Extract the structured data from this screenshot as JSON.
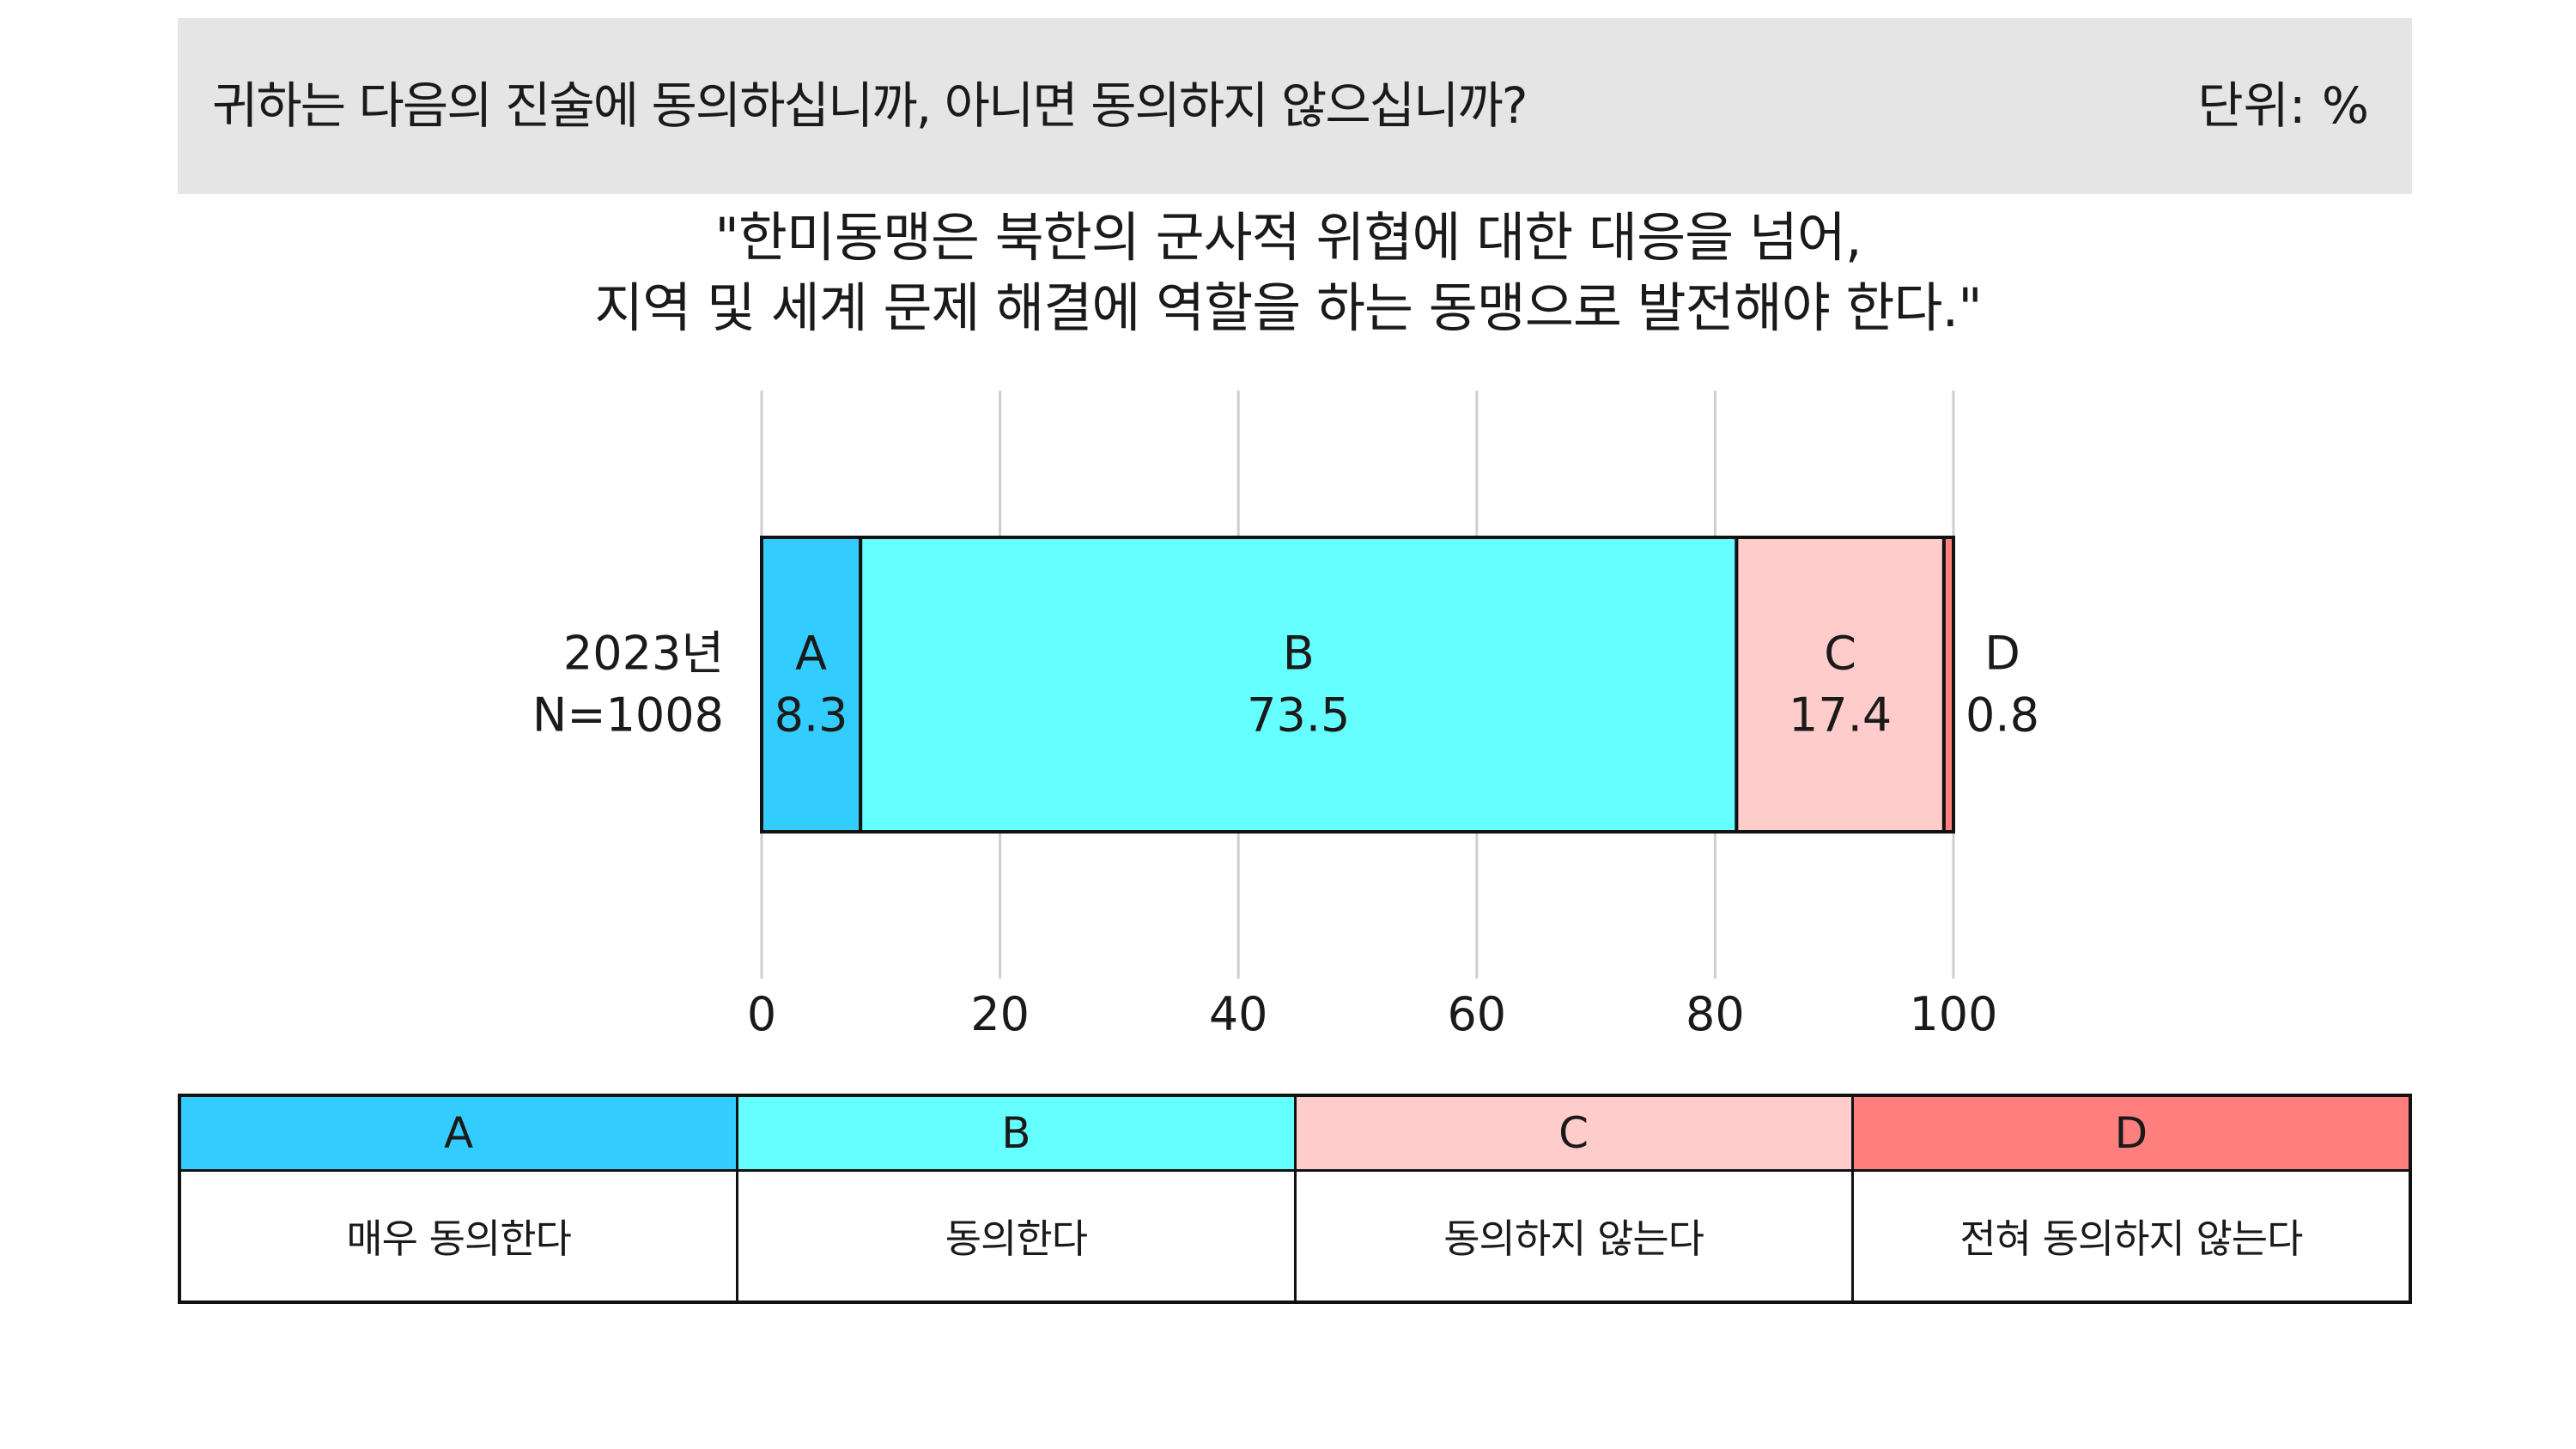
{
  "header": {
    "question": "귀하는 다음의 진술에 동의하십니까, 아니면 동의하지 않으십니까?",
    "unit": "단위: %"
  },
  "statement": {
    "line1": "\"한미동맹은 북한의 군사적 위협에 대한 대응을 넘어,",
    "line2": "지역 및 세계 문제 해결에 역할을 하는 동맹으로 발전해야 한다.\""
  },
  "chart_data": {
    "type": "bar",
    "orientation": "horizontal",
    "stacked": true,
    "categories": [
      "2023년 N=1008"
    ],
    "category_label_lines": [
      "2023년",
      "N=1008"
    ],
    "series": [
      {
        "name": "A",
        "values": [
          8.3
        ],
        "color": "#33ccff"
      },
      {
        "name": "B",
        "values": [
          73.5
        ],
        "color": "#66ffff"
      },
      {
        "name": "C",
        "values": [
          17.4
        ],
        "color": "#ffcccc"
      },
      {
        "name": "D",
        "values": [
          0.8
        ],
        "color": "#ff7f7f"
      }
    ],
    "xlim": [
      0,
      100
    ],
    "xticks": [
      0,
      20,
      40,
      60,
      80,
      100
    ],
    "grid": true
  },
  "legend": [
    {
      "key": "A",
      "label": "매우 동의한다",
      "color": "#33ccff"
    },
    {
      "key": "B",
      "label": "동의한다",
      "color": "#66ffff"
    },
    {
      "key": "C",
      "label": "동의하지 않는다",
      "color": "#ffcccc"
    },
    {
      "key": "D",
      "label": "전혀 동의하지 않는다",
      "color": "#ff7f7f"
    }
  ]
}
